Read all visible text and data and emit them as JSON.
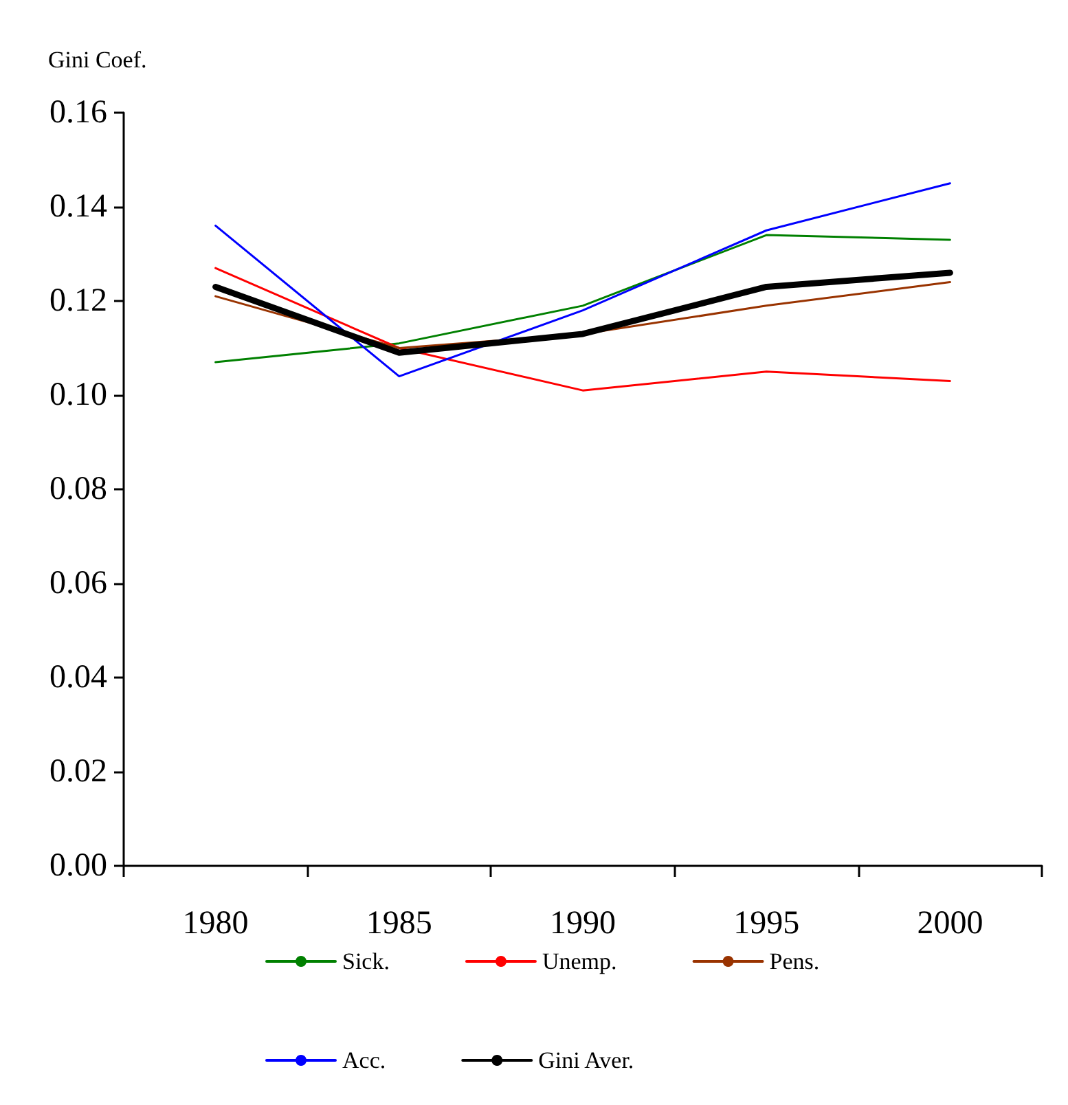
{
  "chart_data": {
    "type": "line",
    "ylabel": "Gini Coef.",
    "categories": [
      "1980",
      "1985",
      "1990",
      "1995",
      "2000"
    ],
    "series": [
      {
        "name": "Sick.",
        "color": "#008000",
        "values": [
          0.107,
          0.111,
          0.119,
          0.134,
          0.133
        ]
      },
      {
        "name": "Unemp.",
        "color": "#ff0000",
        "values": [
          0.127,
          0.11,
          0.101,
          0.105,
          0.103
        ]
      },
      {
        "name": "Pens.",
        "color": "#993300",
        "values": [
          0.121,
          0.11,
          0.113,
          0.119,
          0.124
        ]
      },
      {
        "name": "Acc.",
        "color": "#0000ff",
        "values": [
          0.136,
          0.104,
          0.118,
          0.135,
          0.145
        ]
      },
      {
        "name": "Gini Aver.",
        "color": "#000000",
        "values": [
          0.123,
          0.109,
          0.113,
          0.123,
          0.126
        ]
      }
    ],
    "ylim": [
      0,
      0.16
    ],
    "yticks": [
      {
        "value": 0,
        "label": "0.00"
      },
      {
        "value": 0.02,
        "label": "0.02"
      },
      {
        "value": 0.04,
        "label": "0.04"
      },
      {
        "value": 0.06,
        "label": "0.06"
      },
      {
        "value": 0.08,
        "label": "0.08"
      },
      {
        "value": 0.1,
        "label": "0.10"
      },
      {
        "value": 0.12,
        "label": "0.12"
      },
      {
        "value": 0.14,
        "label": "0.14"
      },
      {
        "value": 0.16,
        "label": "0.16"
      }
    ],
    "grid": false,
    "legend": "bottom",
    "marker": "none",
    "line_style": "solid"
  }
}
